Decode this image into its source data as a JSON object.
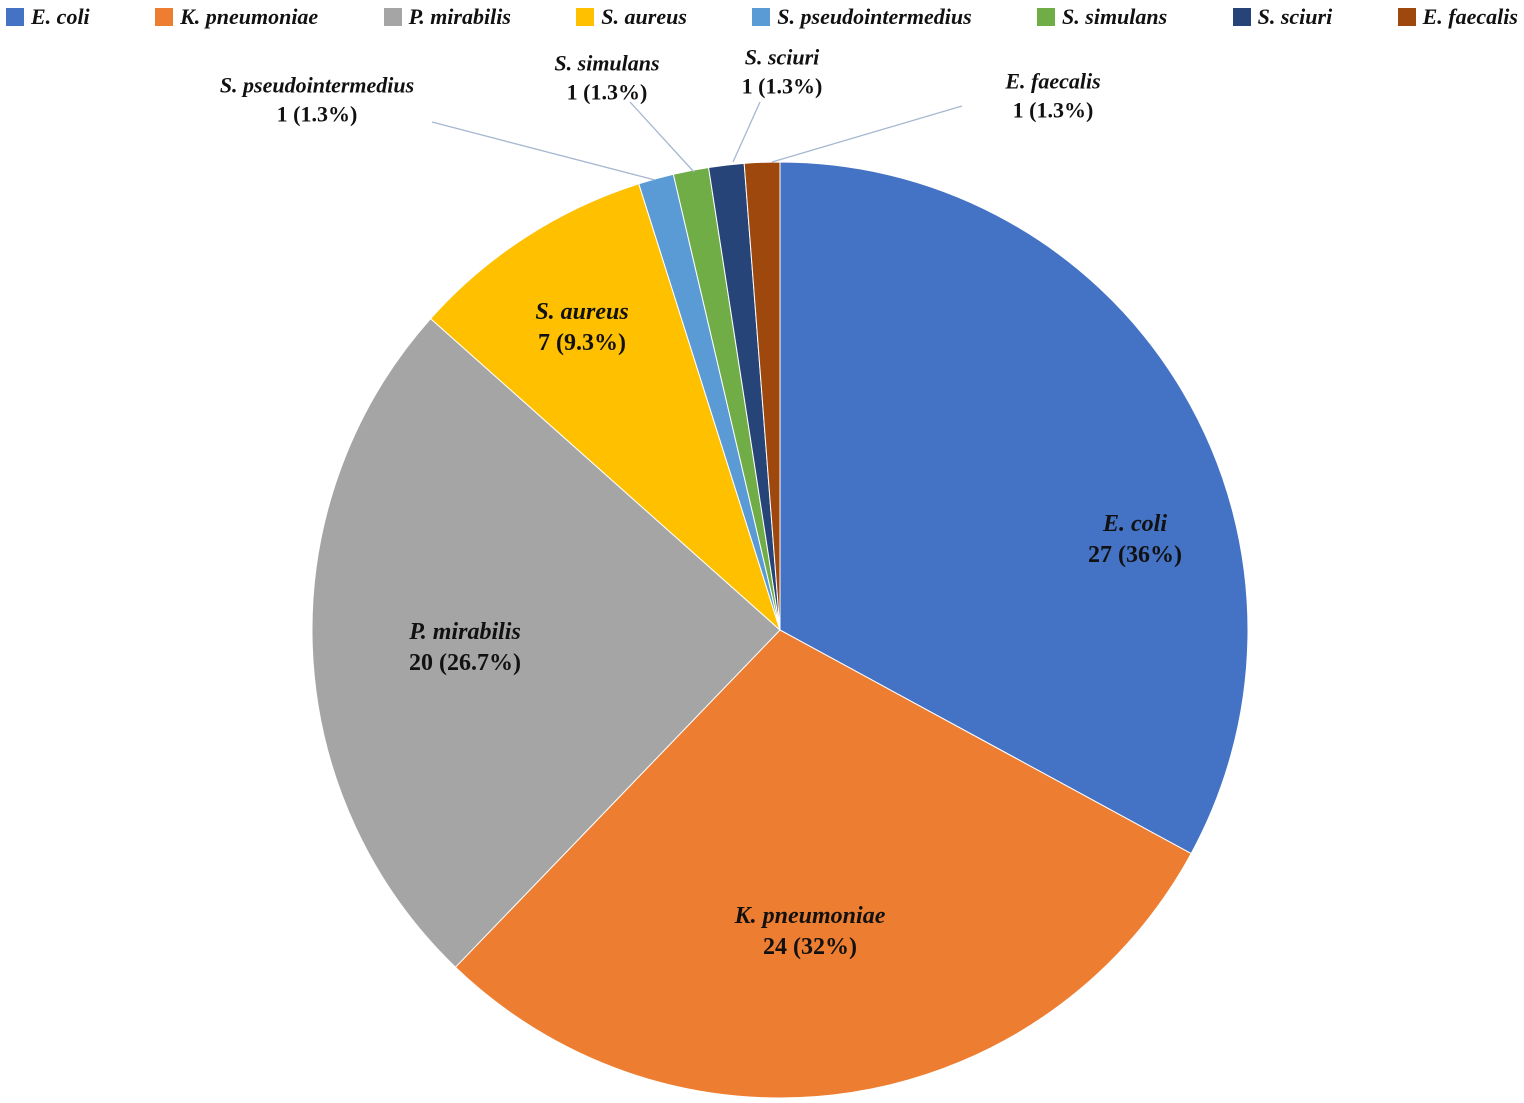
{
  "chart_data": {
    "type": "pie",
    "title": "",
    "legend_position": "top",
    "direction": "clockwise",
    "start_angle_deg": 0,
    "series": [
      {
        "name": "E. coli",
        "value": 27,
        "pct": "36%",
        "label": "27 (36%)",
        "color": "#4472C4",
        "label_placement": "inside"
      },
      {
        "name": "K. pneumoniae",
        "value": 24,
        "pct": "32%",
        "label": "24 (32%)",
        "color": "#ED7D31",
        "label_placement": "inside"
      },
      {
        "name": "P. mirabilis",
        "value": 20,
        "pct": "26.7%",
        "label": "20 (26.7%)",
        "color": "#A5A5A5",
        "label_placement": "inside"
      },
      {
        "name": "S. aureus",
        "value": 7,
        "pct": "9.3%",
        "label": "7 (9.3%)",
        "color": "#FFC000",
        "label_placement": "inside"
      },
      {
        "name": "S. pseudointermedius",
        "value": 1,
        "pct": "1.3%",
        "label": "1 (1.3%)",
        "color": "#5B9BD5",
        "label_placement": "outside"
      },
      {
        "name": "S. simulans",
        "value": 1,
        "pct": "1.3%",
        "label": "1 (1.3%)",
        "color": "#70AD47",
        "label_placement": "outside"
      },
      {
        "name": "S. sciuri",
        "value": 1,
        "pct": "1.3%",
        "label": "1 (1.3%)",
        "color": "#264478",
        "label_placement": "outside"
      },
      {
        "name": "E. faecalis",
        "value": 1,
        "pct": "1.3%",
        "label": "1 (1.3%)",
        "color": "#9E480E",
        "label_placement": "outside"
      }
    ]
  },
  "colors": {
    "background": "#FFFFFF",
    "leader_line": "#A5B8D0",
    "label_text": "#111111"
  }
}
